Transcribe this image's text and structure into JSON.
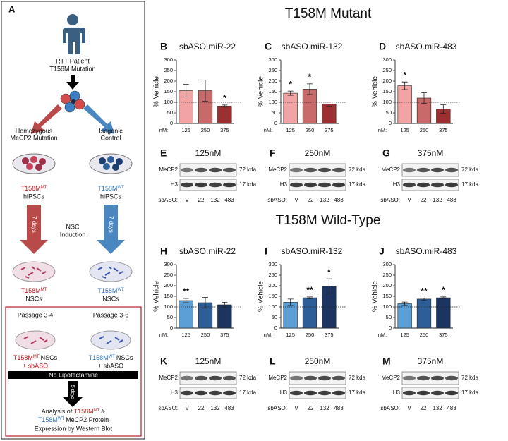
{
  "panel_a": {
    "letter": "A",
    "patient": [
      "RTT Patient",
      "T158M Mutation"
    ],
    "left_group": [
      "Homozygous",
      "MeCP2 Mutation"
    ],
    "right_group": [
      "Isogenic",
      "Control"
    ],
    "ipsc_mt": {
      "base": "T158M",
      "sup": "MT",
      "line2": "hiPSCs"
    },
    "ipsc_wt": {
      "base": "T158M",
      "sup": "WT",
      "line2": "hiPSCs"
    },
    "days_1": "7 days",
    "days_2": "7 days",
    "induction": [
      "NSC",
      "Induction"
    ],
    "nsc_mt": {
      "base": "T158M",
      "sup": "MT",
      "line2": "NSCs"
    },
    "nsc_wt": {
      "base": "T158M",
      "sup": "WT",
      "line2": "NSCs"
    },
    "passage_mt": "Passage 3-4",
    "passage_wt": "Passage 3-6",
    "treat_mt": {
      "base": "T158M",
      "sup": "MT",
      "rest": "NSCs",
      "plus": "+ sbASO"
    },
    "treat_wt": {
      "base": "T158M",
      "sup": "WT",
      "rest": "NSCs",
      "plus": "+ sbASO"
    },
    "no_lipo": "No Lipofectamine",
    "days_3": "5 days",
    "analysis": {
      "l1": "Analysis of",
      "mt": "T158M",
      "mt_sup": "MT",
      "amp": "&",
      "wt": "T158M",
      "wt_sup": "WT",
      "l2": "MeCP2 Protein",
      "l3": "Expression by Western Blot"
    }
  },
  "sections": [
    "T158M Mutant",
    "T158M Wild-Type"
  ],
  "chart_data": [
    {
      "type": "bar",
      "panel": "B",
      "title": "sbASO.miR-22",
      "y_label": "% Vehicle",
      "x_prefix": "nM:",
      "categories": [
        "125",
        "250",
        "375"
      ],
      "values": [
        155,
        155,
        82
      ],
      "errors": [
        30,
        50,
        5
      ],
      "colors": [
        "#f2a3a3",
        "#c86a6a",
        "#9c3030"
      ],
      "annotations": [
        null,
        null,
        "*"
      ],
      "ylim": [
        0,
        300
      ],
      "yticks": [
        0,
        50,
        100,
        150,
        200,
        250,
        300
      ],
      "reference_line": 100
    },
    {
      "type": "bar",
      "panel": "C",
      "title": "sbASO.miR-132",
      "y_label": "% Vehicle",
      "x_prefix": "nM:",
      "categories": [
        "125",
        "250",
        "375"
      ],
      "values": [
        143,
        162,
        92
      ],
      "errors": [
        10,
        25,
        10
      ],
      "colors": [
        "#f2a3a3",
        "#c86a6a",
        "#9c3030"
      ],
      "annotations": [
        "*",
        "*",
        null
      ],
      "ylim": [
        0,
        300
      ],
      "yticks": [
        0,
        50,
        100,
        150,
        200,
        250,
        300
      ],
      "reference_line": 100
    },
    {
      "type": "bar",
      "panel": "D",
      "title": "sbASO.miR-483",
      "y_label": "% Vehicle",
      "x_prefix": "nM:",
      "categories": [
        "125",
        "250",
        "375"
      ],
      "values": [
        178,
        120,
        68
      ],
      "errors": [
        18,
        25,
        20
      ],
      "colors": [
        "#f2a3a3",
        "#c86a6a",
        "#9c3030"
      ],
      "annotations": [
        "*",
        null,
        null
      ],
      "ylim": [
        0,
        300
      ],
      "yticks": [
        0,
        50,
        100,
        150,
        200,
        250,
        300
      ],
      "reference_line": 100
    },
    {
      "type": "bar",
      "panel": "H",
      "title": "sbASO.miR-22",
      "y_label": "% Vehicle",
      "x_prefix": "nM:",
      "categories": [
        "125",
        "250",
        "375"
      ],
      "values": [
        130,
        120,
        110
      ],
      "errors": [
        10,
        25,
        12
      ],
      "colors": [
        "#5b9fd6",
        "#2e5e98",
        "#1b3560"
      ],
      "annotations": [
        "**",
        null,
        null
      ],
      "ylim": [
        0,
        300
      ],
      "yticks": [
        0,
        50,
        100,
        150,
        200,
        250,
        300
      ],
      "reference_line": 100
    },
    {
      "type": "bar",
      "panel": "I",
      "title": "sbASO.miR-132",
      "y_label": "% Vehicle",
      "x_prefix": "nM:",
      "categories": [
        "125",
        "250",
        "375"
      ],
      "values": [
        122,
        143,
        198
      ],
      "errors": [
        15,
        4,
        35
      ],
      "colors": [
        "#5b9fd6",
        "#2e5e98",
        "#1b3560"
      ],
      "annotations": [
        null,
        "**",
        "*"
      ],
      "ylim": [
        0,
        300
      ],
      "yticks": [
        0,
        50,
        100,
        150,
        200,
        250,
        300
      ],
      "reference_line": 100
    },
    {
      "type": "bar",
      "panel": "J",
      "title": "sbASO.miR-483",
      "y_label": "% Vehicle",
      "x_prefix": "nM:",
      "categories": [
        "125",
        "250",
        "375"
      ],
      "values": [
        115,
        137,
        143
      ],
      "errors": [
        8,
        5,
        4
      ],
      "colors": [
        "#5b9fd6",
        "#2e5e98",
        "#1b3560"
      ],
      "annotations": [
        null,
        "**",
        "*"
      ],
      "ylim": [
        0,
        300
      ],
      "yticks": [
        0,
        50,
        100,
        150,
        200,
        250,
        300
      ],
      "reference_line": 100
    }
  ],
  "blots": [
    {
      "panel": "E",
      "title": "125nM",
      "rows": [
        "MeCP2",
        "H3"
      ],
      "sizes": [
        "72 kda",
        "17 kda"
      ],
      "lane_prefix": "sbASO:",
      "lanes": [
        "V",
        "22",
        "132",
        "483"
      ]
    },
    {
      "panel": "F",
      "title": "250nM",
      "rows": [
        "MeCP2",
        "H3"
      ],
      "sizes": [
        "72 kda",
        "17 kda"
      ],
      "lane_prefix": "sbASO:",
      "lanes": [
        "V",
        "22",
        "132",
        "483"
      ]
    },
    {
      "panel": "G",
      "title": "375nM",
      "rows": [
        "MeCP2",
        "H3"
      ],
      "sizes": [
        "72 kda",
        "17 kda"
      ],
      "lane_prefix": "sbASO:",
      "lanes": [
        "V",
        "22",
        "132",
        "483"
      ]
    },
    {
      "panel": "K",
      "title": "125nM",
      "rows": [
        "MeCP2",
        "H3"
      ],
      "sizes": [
        "72 kda",
        "17 kda"
      ],
      "lane_prefix": "sbASO:",
      "lanes": [
        "V",
        "22",
        "132",
        "483"
      ]
    },
    {
      "panel": "L",
      "title": "250nM",
      "rows": [
        "MeCP2",
        "H3"
      ],
      "sizes": [
        "72 kda",
        "17 kda"
      ],
      "lane_prefix": "sbASO:",
      "lanes": [
        "V",
        "22",
        "132",
        "483"
      ]
    },
    {
      "panel": "M",
      "title": "375nM",
      "rows": [
        "MeCP2",
        "H3"
      ],
      "sizes": [
        "72 kda",
        "17 kda"
      ],
      "lane_prefix": "sbASO:",
      "lanes": [
        "V",
        "22",
        "132",
        "483"
      ]
    }
  ]
}
